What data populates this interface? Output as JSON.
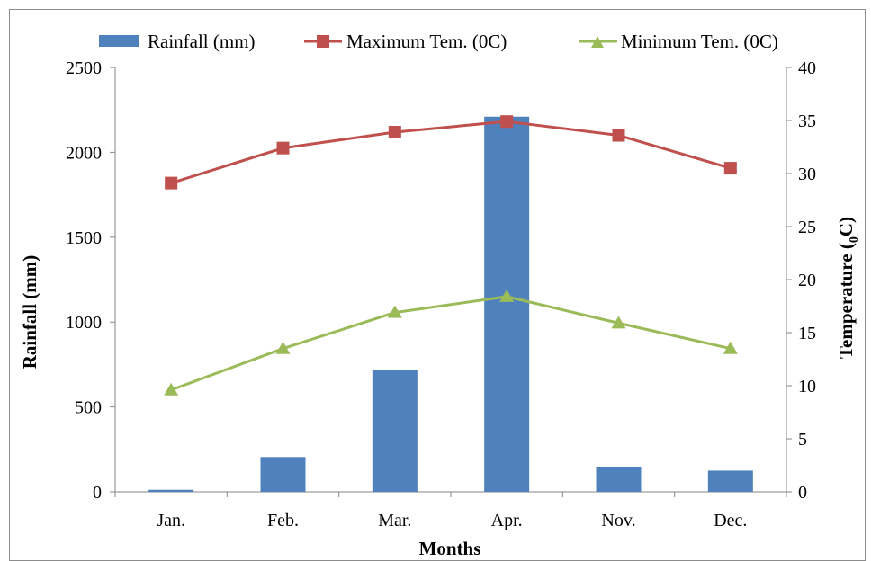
{
  "chart_data": {
    "type": "bar+line",
    "categories": [
      "Jan.",
      "Feb.",
      "Mar.",
      "Apr.",
      "Nov.",
      "Dec."
    ],
    "xlabel": "Months",
    "ylabel": "Rainfall (mm)",
    "y2label_main": "Temperature (",
    "y2label_sub": "0",
    "y2label_end": "C)",
    "ylim": [
      0,
      2500
    ],
    "y2lim": [
      0,
      40
    ],
    "yticks": [
      "0",
      "500",
      "1000",
      "1500",
      "2000",
      "2500"
    ],
    "y2ticks": [
      "0",
      "5",
      "10",
      "15",
      "20",
      "25",
      "30",
      "35",
      "40"
    ],
    "grid": false,
    "legend_position": "top",
    "series": [
      {
        "name": "Rainfall (mm)",
        "type": "bar",
        "axis": "left",
        "color": "#4f81bd",
        "values": [
          12,
          205,
          715,
          2210,
          148,
          125
        ]
      },
      {
        "name": "Maximum Tem.  (0C)",
        "type": "line",
        "axis": "right",
        "marker": "square",
        "color": "#c0504d",
        "values": [
          29.1,
          32.4,
          33.9,
          34.9,
          33.6,
          30.5
        ]
      },
      {
        "name": "Minimum Tem.  (0C)",
        "type": "line",
        "axis": "right",
        "marker": "triangle",
        "color": "#9bbb59",
        "values": [
          9.6,
          13.5,
          16.9,
          18.4,
          15.9,
          13.5
        ]
      }
    ]
  }
}
